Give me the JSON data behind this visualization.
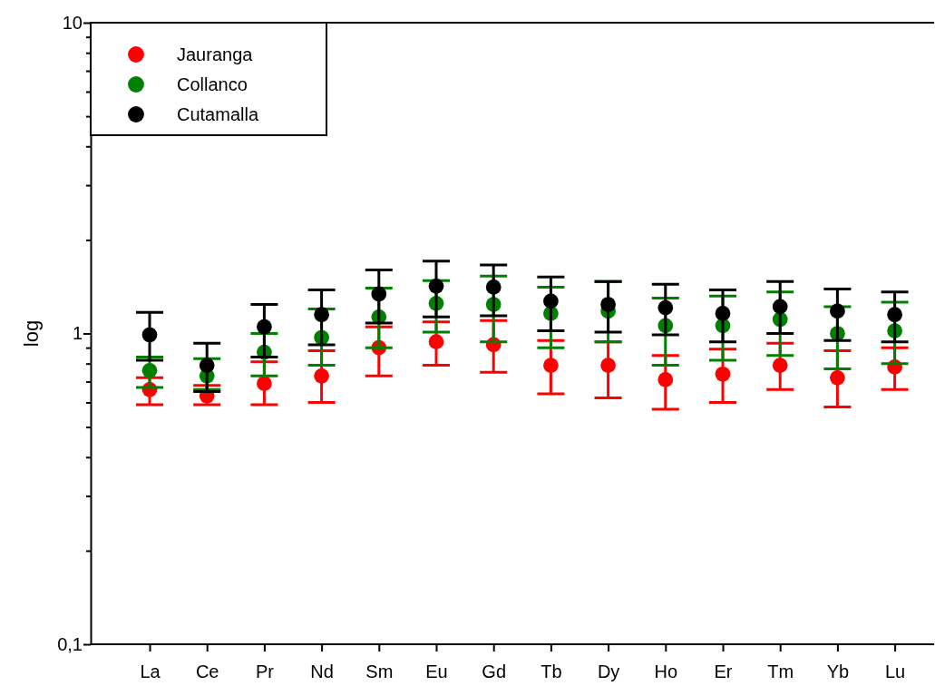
{
  "chart_data": {
    "type": "scatter",
    "ylabel": "log",
    "log": "y",
    "marker": "circle",
    "legend": "top left",
    "grid": false,
    "categories": [
      "La",
      "Ce",
      "Pr",
      "Nd",
      "Sm",
      "Eu",
      "Gd",
      "Tb",
      "Dy",
      "Ho",
      "Er",
      "Tm",
      "Yb",
      "Lu"
    ],
    "ylim": [
      0.1,
      10
    ],
    "yticks": [
      {
        "value": 0.1,
        "label": "0,1"
      },
      {
        "value": 0.2,
        "label": null
      },
      {
        "value": 0.3,
        "label": null
      },
      {
        "value": 0.4,
        "label": null
      },
      {
        "value": 0.5,
        "label": null
      },
      {
        "value": 0.6,
        "label": null
      },
      {
        "value": 0.7,
        "label": null
      },
      {
        "value": 0.8,
        "label": null
      },
      {
        "value": 0.9,
        "label": null
      },
      1,
      {
        "value": 2,
        "label": null
      },
      {
        "value": 3,
        "label": null
      },
      {
        "value": 4,
        "label": null
      },
      {
        "value": 5,
        "label": null
      },
      {
        "value": 6,
        "label": null
      },
      {
        "value": 7,
        "label": null
      },
      {
        "value": 8,
        "label": null
      },
      {
        "value": 9,
        "label": null
      },
      10
    ],
    "series": [
      {
        "name": "Jauranga",
        "color": "#ff0000",
        "values": [
          0.66,
          0.63,
          0.69,
          0.73,
          0.9,
          0.94,
          0.92,
          0.79,
          0.79,
          0.71,
          0.74,
          0.79,
          0.72,
          0.78
        ],
        "errors": [
          [
            0.59,
            0.72
          ],
          [
            0.59,
            0.68
          ],
          [
            0.59,
            0.81
          ],
          [
            0.6,
            0.88
          ],
          [
            0.73,
            1.05
          ],
          [
            0.79,
            1.09
          ],
          [
            0.75,
            1.1
          ],
          [
            0.64,
            0.95
          ],
          [
            0.62,
            0.94
          ],
          [
            0.57,
            0.85
          ],
          [
            0.6,
            0.89
          ],
          [
            0.66,
            0.93
          ],
          [
            0.58,
            0.88
          ],
          [
            0.66,
            0.9
          ]
        ]
      },
      {
        "name": "Collanco",
        "color": "#008000",
        "values": [
          0.76,
          0.73,
          0.87,
          0.97,
          1.13,
          1.25,
          1.24,
          1.16,
          1.18,
          1.06,
          1.06,
          1.11,
          1.0,
          1.02
        ],
        "errors": [
          [
            0.67,
            0.84
          ],
          [
            0.66,
            0.83
          ],
          [
            0.73,
            1.0
          ],
          [
            0.79,
            1.2
          ],
          [
            0.9,
            1.4
          ],
          [
            1.01,
            1.48
          ],
          [
            0.94,
            1.53
          ],
          [
            0.9,
            1.41
          ],
          [
            0.94,
            1.47
          ],
          [
            0.79,
            1.3
          ],
          [
            0.82,
            1.32
          ],
          [
            0.85,
            1.36
          ],
          [
            0.77,
            1.22
          ],
          [
            0.8,
            1.26
          ]
        ]
      },
      {
        "name": "Cutamalla",
        "color": "#000000",
        "values": [
          0.99,
          0.79,
          1.05,
          1.15,
          1.34,
          1.42,
          1.41,
          1.27,
          1.24,
          1.21,
          1.16,
          1.22,
          1.18,
          1.15
        ],
        "errors": [
          [
            0.82,
            1.17
          ],
          [
            0.65,
            0.93
          ],
          [
            0.84,
            1.24
          ],
          [
            0.92,
            1.38
          ],
          [
            1.08,
            1.6
          ],
          [
            1.13,
            1.71
          ],
          [
            1.14,
            1.66
          ],
          [
            1.02,
            1.52
          ],
          [
            1.01,
            1.47
          ],
          [
            0.99,
            1.44
          ],
          [
            0.94,
            1.38
          ],
          [
            1.0,
            1.47
          ],
          [
            0.95,
            1.39
          ],
          [
            0.94,
            1.36
          ]
        ]
      }
    ]
  }
}
